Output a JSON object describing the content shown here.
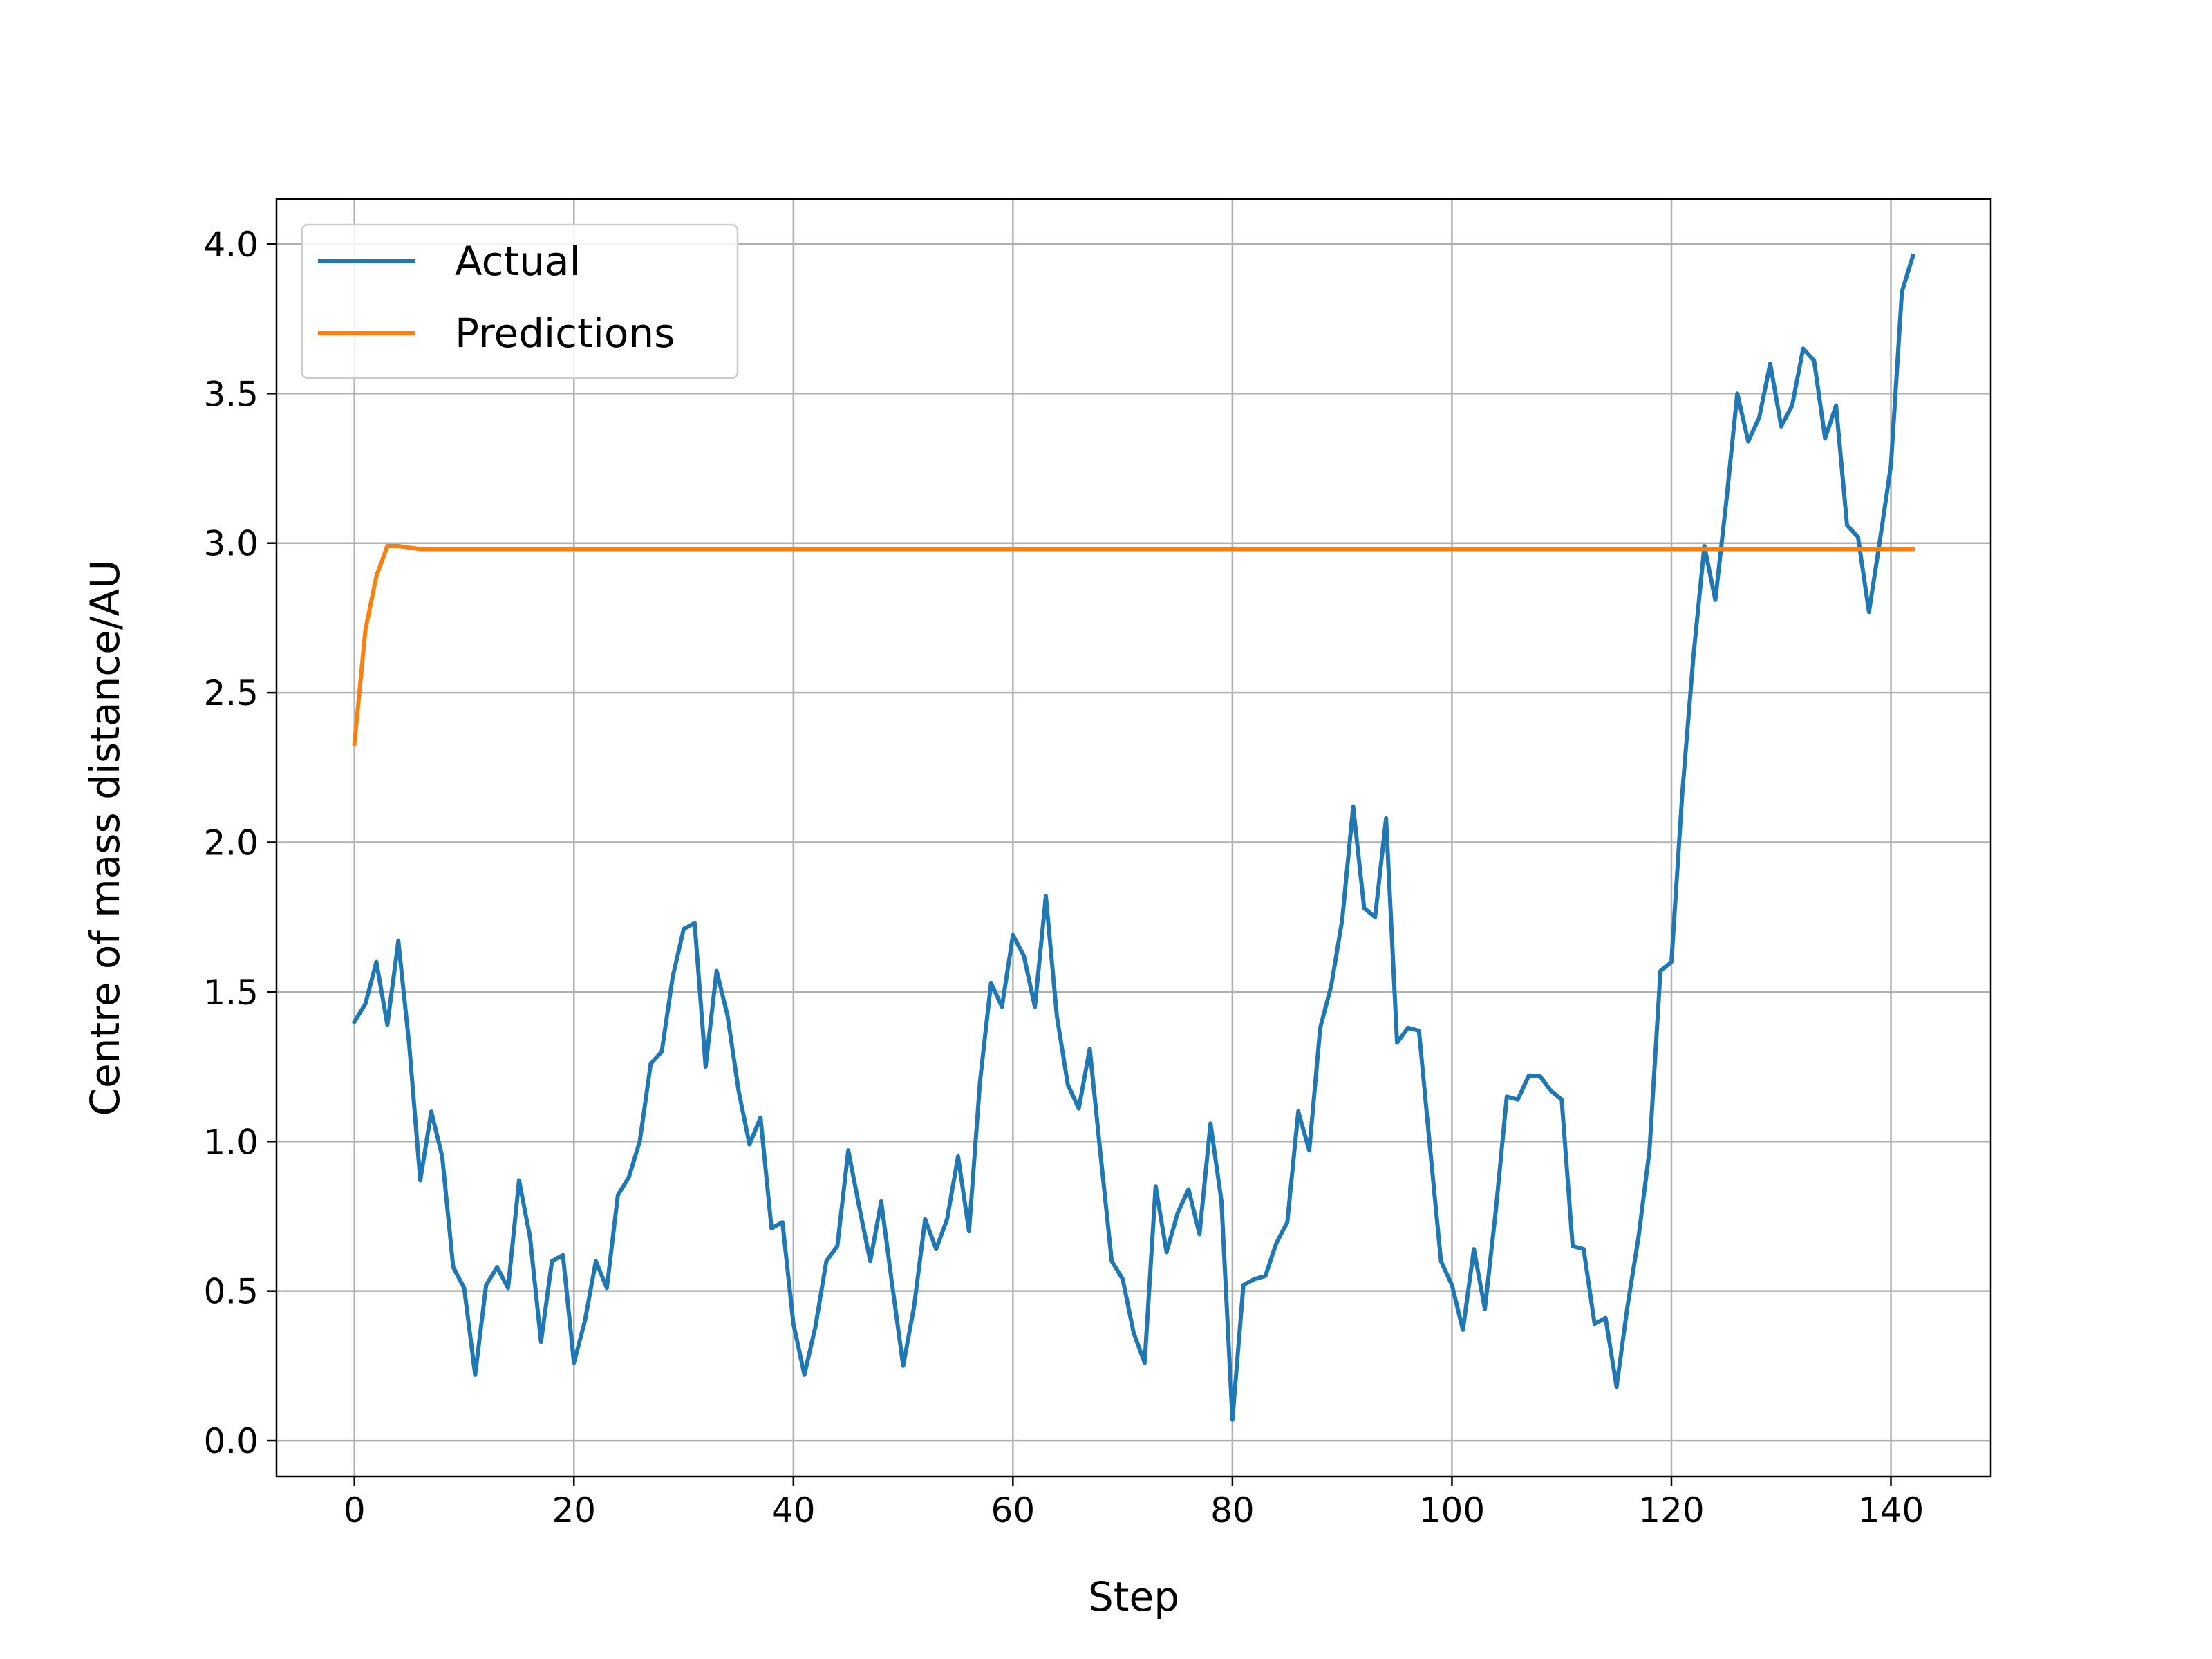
{
  "chart_data": {
    "type": "line",
    "title": "",
    "xlabel": "Step",
    "ylabel": "Centre of mass distance/AU",
    "xlim": [
      -7.1,
      149.1
    ],
    "ylim": [
      -0.12,
      4.15
    ],
    "xticks": [
      0,
      20,
      40,
      60,
      80,
      100,
      120,
      140
    ],
    "yticks": [
      0.0,
      0.5,
      1.0,
      1.5,
      2.0,
      2.5,
      3.0,
      3.5,
      4.0
    ],
    "ytick_labels": [
      "0.0",
      "0.5",
      "1.0",
      "1.5",
      "2.0",
      "2.5",
      "3.0",
      "3.5",
      "4.0"
    ],
    "grid": true,
    "legend_position": "top-left",
    "series": [
      {
        "name": "Actual",
        "color": "#1f77b4",
        "values": [
          1.4,
          1.46,
          1.6,
          1.39,
          1.67,
          1.32,
          0.87,
          1.1,
          0.95,
          0.58,
          0.51,
          0.22,
          0.52,
          0.58,
          0.51,
          0.87,
          0.68,
          0.33,
          0.6,
          0.62,
          0.26,
          0.4,
          0.6,
          0.51,
          0.82,
          0.88,
          1.0,
          1.26,
          1.3,
          1.55,
          1.71,
          1.73,
          1.25,
          1.57,
          1.42,
          1.17,
          0.99,
          1.08,
          0.71,
          0.73,
          0.39,
          0.22,
          0.38,
          0.6,
          0.65,
          0.97,
          0.78,
          0.6,
          0.8,
          0.52,
          0.25,
          0.45,
          0.74,
          0.64,
          0.74,
          0.95,
          0.7,
          1.2,
          1.53,
          1.45,
          1.69,
          1.62,
          1.45,
          1.82,
          1.42,
          1.19,
          1.11,
          1.31,
          0.95,
          0.6,
          0.54,
          0.36,
          0.26,
          0.85,
          0.63,
          0.76,
          0.84,
          0.69,
          1.06,
          0.8,
          0.07,
          0.52,
          0.54,
          0.55,
          0.66,
          0.73,
          1.1,
          0.97,
          1.38,
          1.52,
          1.74,
          2.12,
          1.78,
          1.75,
          2.08,
          1.33,
          1.38,
          1.37,
          0.98,
          0.6,
          0.52,
          0.37,
          0.64,
          0.44,
          0.77,
          1.15,
          1.14,
          1.22,
          1.22,
          1.17,
          1.14,
          0.65,
          0.64,
          0.39,
          0.41,
          0.18,
          0.45,
          0.68,
          0.97,
          1.57,
          1.6,
          2.17,
          2.62,
          2.99,
          2.81,
          3.14,
          3.5,
          3.34,
          3.42,
          3.6,
          3.39,
          3.46,
          3.65,
          3.61,
          3.35,
          3.46,
          3.06,
          3.02,
          2.77,
          3.01,
          3.26,
          3.84,
          3.96
        ]
      },
      {
        "name": "Predictions",
        "color": "#ff7f0e",
        "values": [
          2.33,
          2.71,
          2.89,
          2.99,
          2.99,
          2.985,
          2.98,
          2.98,
          2.98,
          2.98,
          2.98,
          2.98,
          2.98,
          2.98,
          2.98,
          2.98,
          2.98,
          2.98,
          2.98,
          2.98,
          2.98,
          2.98,
          2.98,
          2.98,
          2.98,
          2.98,
          2.98,
          2.98,
          2.98,
          2.98,
          2.98,
          2.98,
          2.98,
          2.98,
          2.98,
          2.98,
          2.98,
          2.98,
          2.98,
          2.98,
          2.98,
          2.98,
          2.98,
          2.98,
          2.98,
          2.98,
          2.98,
          2.98,
          2.98,
          2.98,
          2.98,
          2.98,
          2.98,
          2.98,
          2.98,
          2.98,
          2.98,
          2.98,
          2.98,
          2.98,
          2.98,
          2.98,
          2.98,
          2.98,
          2.98,
          2.98,
          2.98,
          2.98,
          2.98,
          2.98,
          2.98,
          2.98,
          2.98,
          2.98,
          2.98,
          2.98,
          2.98,
          2.98,
          2.98,
          2.98,
          2.98,
          2.98,
          2.98,
          2.98,
          2.98,
          2.98,
          2.98,
          2.98,
          2.98,
          2.98,
          2.98,
          2.98,
          2.98,
          2.98,
          2.98,
          2.98,
          2.98,
          2.98,
          2.98,
          2.98,
          2.98,
          2.98,
          2.98,
          2.98,
          2.98,
          2.98,
          2.98,
          2.98,
          2.98,
          2.98,
          2.98,
          2.98,
          2.98,
          2.98,
          2.98,
          2.98,
          2.98,
          2.98,
          2.98,
          2.98,
          2.98,
          2.98,
          2.98,
          2.98,
          2.98,
          2.98,
          2.98,
          2.98,
          2.98,
          2.98,
          2.98,
          2.98,
          2.98,
          2.98,
          2.98,
          2.98,
          2.98,
          2.98,
          2.98,
          2.98,
          2.98,
          2.98,
          2.98
        ]
      }
    ]
  }
}
